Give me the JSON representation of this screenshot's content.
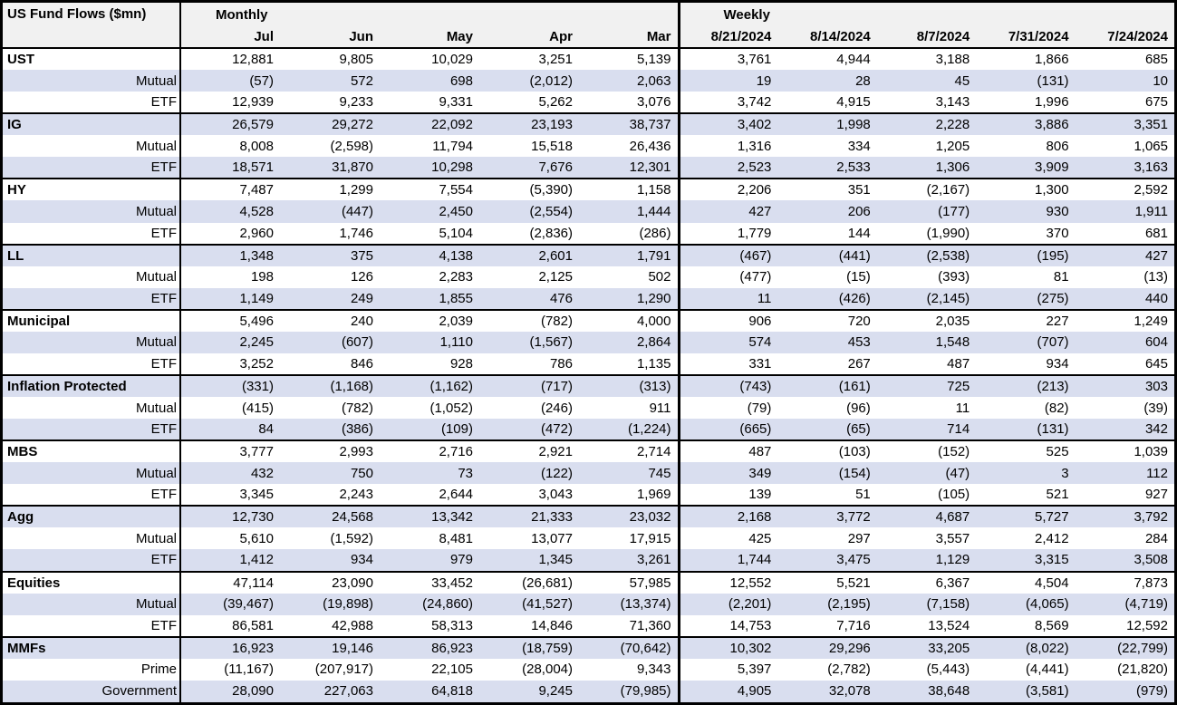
{
  "table": {
    "title": "US Fund Flows ($mn)",
    "sections": [
      {
        "label": "Monthly",
        "columns": [
          "Jul",
          "Jun",
          "May",
          "Apr",
          "Mar"
        ]
      },
      {
        "label": "Weekly",
        "columns": [
          "8/21/2024",
          "8/14/2024",
          "8/7/2024",
          "7/31/2024",
          "7/24/2024"
        ]
      }
    ],
    "groups": [
      {
        "label": "UST",
        "rows": [
          {
            "label": "UST",
            "monthly": [
              "12,881",
              "9,805",
              "10,029",
              "3,251",
              "5,139"
            ],
            "weekly": [
              "3,761",
              "4,944",
              "3,188",
              "1,866",
              "685"
            ]
          },
          {
            "label": "Mutual",
            "monthly": [
              "(57)",
              "572",
              "698",
              "(2,012)",
              "2,063"
            ],
            "weekly": [
              "19",
              "28",
              "45",
              "(131)",
              "10"
            ]
          },
          {
            "label": "ETF",
            "monthly": [
              "12,939",
              "9,233",
              "9,331",
              "5,262",
              "3,076"
            ],
            "weekly": [
              "3,742",
              "4,915",
              "3,143",
              "1,996",
              "675"
            ]
          }
        ]
      },
      {
        "label": "IG",
        "rows": [
          {
            "label": "IG",
            "monthly": [
              "26,579",
              "29,272",
              "22,092",
              "23,193",
              "38,737"
            ],
            "weekly": [
              "3,402",
              "1,998",
              "2,228",
              "3,886",
              "3,351"
            ]
          },
          {
            "label": "Mutual",
            "monthly": [
              "8,008",
              "(2,598)",
              "11,794",
              "15,518",
              "26,436"
            ],
            "weekly": [
              "1,316",
              "334",
              "1,205",
              "806",
              "1,065"
            ]
          },
          {
            "label": "ETF",
            "monthly": [
              "18,571",
              "31,870",
              "10,298",
              "7,676",
              "12,301"
            ],
            "weekly": [
              "2,523",
              "2,533",
              "1,306",
              "3,909",
              "3,163"
            ]
          }
        ]
      },
      {
        "label": "HY",
        "rows": [
          {
            "label": "HY",
            "monthly": [
              "7,487",
              "1,299",
              "7,554",
              "(5,390)",
              "1,158"
            ],
            "weekly": [
              "2,206",
              "351",
              "(2,167)",
              "1,300",
              "2,592"
            ]
          },
          {
            "label": "Mutual",
            "monthly": [
              "4,528",
              "(447)",
              "2,450",
              "(2,554)",
              "1,444"
            ],
            "weekly": [
              "427",
              "206",
              "(177)",
              "930",
              "1,911"
            ]
          },
          {
            "label": "ETF",
            "monthly": [
              "2,960",
              "1,746",
              "5,104",
              "(2,836)",
              "(286)"
            ],
            "weekly": [
              "1,779",
              "144",
              "(1,990)",
              "370",
              "681"
            ]
          }
        ]
      },
      {
        "label": "LL",
        "rows": [
          {
            "label": "LL",
            "monthly": [
              "1,348",
              "375",
              "4,138",
              "2,601",
              "1,791"
            ],
            "weekly": [
              "(467)",
              "(441)",
              "(2,538)",
              "(195)",
              "427"
            ]
          },
          {
            "label": "Mutual",
            "monthly": [
              "198",
              "126",
              "2,283",
              "2,125",
              "502"
            ],
            "weekly": [
              "(477)",
              "(15)",
              "(393)",
              "81",
              "(13)"
            ]
          },
          {
            "label": "ETF",
            "monthly": [
              "1,149",
              "249",
              "1,855",
              "476",
              "1,290"
            ],
            "weekly": [
              "11",
              "(426)",
              "(2,145)",
              "(275)",
              "440"
            ]
          }
        ]
      },
      {
        "label": "Municipal",
        "rows": [
          {
            "label": "Municipal",
            "monthly": [
              "5,496",
              "240",
              "2,039",
              "(782)",
              "4,000"
            ],
            "weekly": [
              "906",
              "720",
              "2,035",
              "227",
              "1,249"
            ]
          },
          {
            "label": "Mutual",
            "monthly": [
              "2,245",
              "(607)",
              "1,110",
              "(1,567)",
              "2,864"
            ],
            "weekly": [
              "574",
              "453",
              "1,548",
              "(707)",
              "604"
            ]
          },
          {
            "label": "ETF",
            "monthly": [
              "3,252",
              "846",
              "928",
              "786",
              "1,135"
            ],
            "weekly": [
              "331",
              "267",
              "487",
              "934",
              "645"
            ]
          }
        ]
      },
      {
        "label": "Inflation Protected",
        "rows": [
          {
            "label": "Inflation Protected",
            "monthly": [
              "(331)",
              "(1,168)",
              "(1,162)",
              "(717)",
              "(313)"
            ],
            "weekly": [
              "(743)",
              "(161)",
              "725",
              "(213)",
              "303"
            ]
          },
          {
            "label": "Mutual",
            "monthly": [
              "(415)",
              "(782)",
              "(1,052)",
              "(246)",
              "911"
            ],
            "weekly": [
              "(79)",
              "(96)",
              "11",
              "(82)",
              "(39)"
            ]
          },
          {
            "label": "ETF",
            "monthly": [
              "84",
              "(386)",
              "(109)",
              "(472)",
              "(1,224)"
            ],
            "weekly": [
              "(665)",
              "(65)",
              "714",
              "(131)",
              "342"
            ]
          }
        ]
      },
      {
        "label": "MBS",
        "rows": [
          {
            "label": "MBS",
            "monthly": [
              "3,777",
              "2,993",
              "2,716",
              "2,921",
              "2,714"
            ],
            "weekly": [
              "487",
              "(103)",
              "(152)",
              "525",
              "1,039"
            ]
          },
          {
            "label": "Mutual",
            "monthly": [
              "432",
              "750",
              "73",
              "(122)",
              "745"
            ],
            "weekly": [
              "349",
              "(154)",
              "(47)",
              "3",
              "112"
            ]
          },
          {
            "label": "ETF",
            "monthly": [
              "3,345",
              "2,243",
              "2,644",
              "3,043",
              "1,969"
            ],
            "weekly": [
              "139",
              "51",
              "(105)",
              "521",
              "927"
            ]
          }
        ]
      },
      {
        "label": "Agg",
        "rows": [
          {
            "label": "Agg",
            "monthly": [
              "12,730",
              "24,568",
              "13,342",
              "21,333",
              "23,032"
            ],
            "weekly": [
              "2,168",
              "3,772",
              "4,687",
              "5,727",
              "3,792"
            ]
          },
          {
            "label": "Mutual",
            "monthly": [
              "5,610",
              "(1,592)",
              "8,481",
              "13,077",
              "17,915"
            ],
            "weekly": [
              "425",
              "297",
              "3,557",
              "2,412",
              "284"
            ]
          },
          {
            "label": "ETF",
            "monthly": [
              "1,412",
              "934",
              "979",
              "1,345",
              "3,261"
            ],
            "weekly": [
              "1,744",
              "3,475",
              "1,129",
              "3,315",
              "3,508"
            ]
          }
        ]
      },
      {
        "label": "Equities",
        "rows": [
          {
            "label": "Equities",
            "monthly": [
              "47,114",
              "23,090",
              "33,452",
              "(26,681)",
              "57,985"
            ],
            "weekly": [
              "12,552",
              "5,521",
              "6,367",
              "4,504",
              "7,873"
            ]
          },
          {
            "label": "Mutual",
            "monthly": [
              "(39,467)",
              "(19,898)",
              "(24,860)",
              "(41,527)",
              "(13,374)"
            ],
            "weekly": [
              "(2,201)",
              "(2,195)",
              "(7,158)",
              "(4,065)",
              "(4,719)"
            ]
          },
          {
            "label": "ETF",
            "monthly": [
              "86,581",
              "42,988",
              "58,313",
              "14,846",
              "71,360"
            ],
            "weekly": [
              "14,753",
              "7,716",
              "13,524",
              "8,569",
              "12,592"
            ]
          }
        ]
      },
      {
        "label": "MMFs",
        "rows": [
          {
            "label": "MMFs",
            "monthly": [
              "16,923",
              "19,146",
              "86,923",
              "(18,759)",
              "(70,642)"
            ],
            "weekly": [
              "10,302",
              "29,296",
              "33,205",
              "(8,022)",
              "(22,799)"
            ]
          },
          {
            "label": "Prime",
            "monthly": [
              "(11,167)",
              "(207,917)",
              "22,105",
              "(28,004)",
              "9,343"
            ],
            "weekly": [
              "5,397",
              "(2,782)",
              "(5,443)",
              "(4,441)",
              "(21,820)"
            ]
          },
          {
            "label": "Government",
            "monthly": [
              "28,090",
              "227,063",
              "64,818",
              "9,245",
              "(79,985)"
            ],
            "weekly": [
              "4,905",
              "32,078",
              "38,648",
              "(3,581)",
              "(979)"
            ]
          }
        ]
      }
    ]
  },
  "colors": {
    "stripe": "#d9deef",
    "header_bg": "#f1f1f1",
    "border": "#000000",
    "text": "#000000"
  }
}
